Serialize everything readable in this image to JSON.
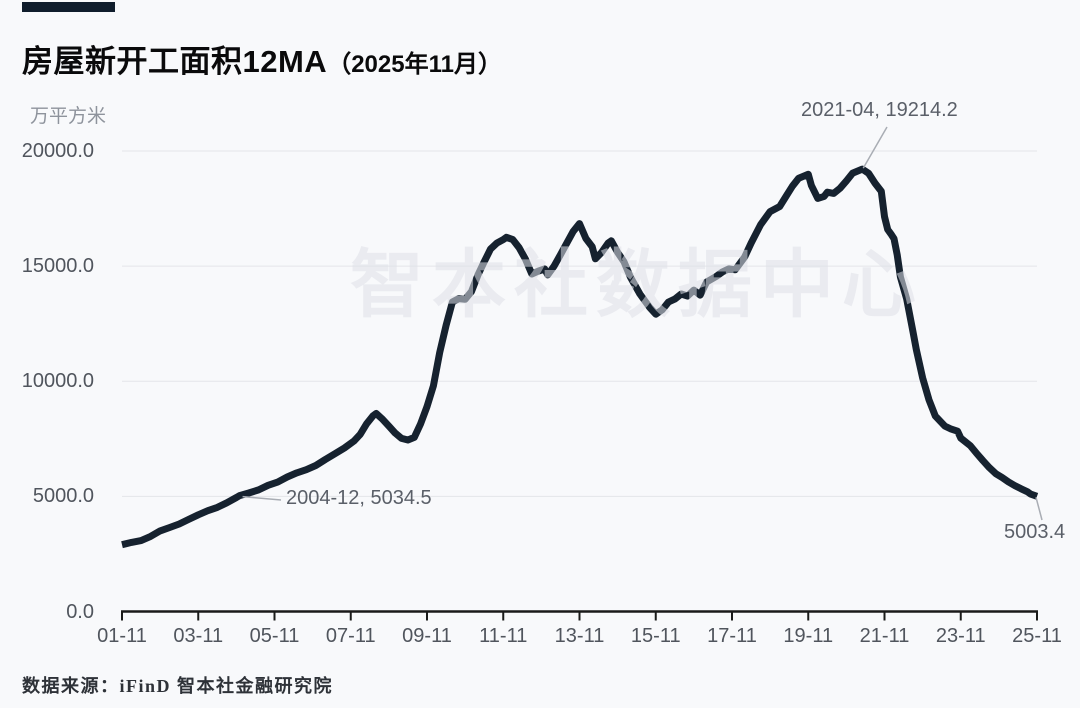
{
  "header": {
    "title_main": "房屋新开工面积12MA",
    "title_paren": "（2025年11月）",
    "unit_label": "万平方米"
  },
  "watermark": "智本社数据中心",
  "footer": {
    "source": "数据来源：iFinD 智本社金融研究院"
  },
  "colors": {
    "background": "#f8f9fb",
    "accent_bar": "#101d2c",
    "line": "#16222f",
    "grid": "#e4e5e9",
    "axis": "#1a1a1a",
    "tick_text": "#50555d",
    "annotation_text": "#5a5f68",
    "leader_line": "#a9adb4",
    "watermark_text": "#e3e5ec"
  },
  "chart_data": {
    "type": "line",
    "title": "房屋新开工面积12MA（2025年11月）",
    "xlabel": "",
    "ylabel": "万平方米",
    "ylim": [
      0,
      20000
    ],
    "grid": "horizontal",
    "legend": "none",
    "y_ticks": [
      "20000.0",
      "15000.0",
      "10000.0",
      "5000.0",
      "0.0"
    ],
    "x_ticks": [
      "01-11",
      "03-11",
      "05-11",
      "07-11",
      "09-11",
      "11-11",
      "13-11",
      "15-11",
      "17-11",
      "19-11",
      "21-11",
      "23-11",
      "25-11"
    ],
    "annotations": [
      {
        "label": "2004-12, 5034.5",
        "date": "2004-12",
        "value": 5034.5
      },
      {
        "label": "2021-04, 19214.2",
        "date": "2021-04",
        "value": 19214.2
      },
      {
        "label": "5003.4",
        "date": "2025-11",
        "value": 5003.4
      }
    ],
    "series": [
      {
        "name": "房屋新开工面积12MA",
        "color": "#16222f",
        "points": [
          [
            "2001-11",
            2900
          ],
          [
            "2002-02",
            3000
          ],
          [
            "2002-05",
            3080
          ],
          [
            "2002-08",
            3260
          ],
          [
            "2002-11",
            3500
          ],
          [
            "2003-02",
            3650
          ],
          [
            "2003-05",
            3800
          ],
          [
            "2003-08",
            4000
          ],
          [
            "2003-11",
            4200
          ],
          [
            "2004-02",
            4380
          ],
          [
            "2004-05",
            4520
          ],
          [
            "2004-08",
            4720
          ],
          [
            "2004-11",
            4950
          ],
          [
            "2004-12",
            5034.5
          ],
          [
            "2005-03",
            5150
          ],
          [
            "2005-06",
            5280
          ],
          [
            "2005-09",
            5480
          ],
          [
            "2005-12",
            5620
          ],
          [
            "2006-03",
            5840
          ],
          [
            "2006-06",
            6020
          ],
          [
            "2006-09",
            6160
          ],
          [
            "2006-12",
            6340
          ],
          [
            "2007-03",
            6600
          ],
          [
            "2007-06",
            6850
          ],
          [
            "2007-09",
            7100
          ],
          [
            "2007-12",
            7400
          ],
          [
            "2008-02",
            7700
          ],
          [
            "2008-04",
            8150
          ],
          [
            "2008-06",
            8500
          ],
          [
            "2008-07",
            8600
          ],
          [
            "2008-09",
            8350
          ],
          [
            "2008-11",
            8050
          ],
          [
            "2009-01",
            7750
          ],
          [
            "2009-03",
            7520
          ],
          [
            "2009-05",
            7450
          ],
          [
            "2009-07",
            7560
          ],
          [
            "2009-09",
            8150
          ],
          [
            "2009-11",
            8900
          ],
          [
            "2010-01",
            9800
          ],
          [
            "2010-03",
            11250
          ],
          [
            "2010-05",
            12430
          ],
          [
            "2010-07",
            13440
          ],
          [
            "2010-09",
            13590
          ],
          [
            "2010-11",
            13560
          ],
          [
            "2011-01",
            13900
          ],
          [
            "2011-03",
            14600
          ],
          [
            "2011-05",
            15190
          ],
          [
            "2011-07",
            15740
          ],
          [
            "2011-09",
            16000
          ],
          [
            "2011-11",
            16150
          ],
          [
            "2011-12",
            16250
          ],
          [
            "2012-02",
            16150
          ],
          [
            "2012-04",
            15800
          ],
          [
            "2012-06",
            15300
          ],
          [
            "2012-08",
            14660
          ],
          [
            "2012-10",
            14780
          ],
          [
            "2012-12",
            14880
          ],
          [
            "2013-01",
            14620
          ],
          [
            "2013-03",
            15000
          ],
          [
            "2013-05",
            15490
          ],
          [
            "2013-07",
            16000
          ],
          [
            "2013-09",
            16500
          ],
          [
            "2013-11",
            16848
          ],
          [
            "2014-01",
            16200
          ],
          [
            "2014-03",
            15840
          ],
          [
            "2014-04",
            15320
          ],
          [
            "2014-06",
            15600
          ],
          [
            "2014-08",
            16000
          ],
          [
            "2014-09",
            16100
          ],
          [
            "2014-11",
            15600
          ],
          [
            "2015-01",
            15190
          ],
          [
            "2015-03",
            14530
          ],
          [
            "2015-06",
            13790
          ],
          [
            "2015-09",
            13220
          ],
          [
            "2015-11",
            12910
          ],
          [
            "2016-01",
            13100
          ],
          [
            "2016-03",
            13440
          ],
          [
            "2016-05",
            13570
          ],
          [
            "2016-07",
            13790
          ],
          [
            "2016-09",
            13700
          ],
          [
            "2016-11",
            13960
          ],
          [
            "2017-01",
            13740
          ],
          [
            "2017-03",
            14310
          ],
          [
            "2017-06",
            14550
          ],
          [
            "2017-08",
            14750
          ],
          [
            "2017-10",
            14880
          ],
          [
            "2017-12",
            14840
          ],
          [
            "2018-03",
            15400
          ],
          [
            "2018-05",
            16000
          ],
          [
            "2018-08",
            16800
          ],
          [
            "2018-11",
            17370
          ],
          [
            "2019-02",
            17590
          ],
          [
            "2019-04",
            18030
          ],
          [
            "2019-06",
            18470
          ],
          [
            "2019-08",
            18820
          ],
          [
            "2019-11",
            18990
          ],
          [
            "2019-12",
            18500
          ],
          [
            "2020-02",
            17940
          ],
          [
            "2020-04",
            18030
          ],
          [
            "2020-05",
            18210
          ],
          [
            "2020-07",
            18160
          ],
          [
            "2020-09",
            18380
          ],
          [
            "2020-11",
            18700
          ],
          [
            "2021-01",
            19040
          ],
          [
            "2021-04",
            19214.2
          ],
          [
            "2021-06",
            19030
          ],
          [
            "2021-08",
            18600
          ],
          [
            "2021-10",
            18250
          ],
          [
            "2021-11",
            17150
          ],
          [
            "2021-12",
            16590
          ],
          [
            "2022-01",
            16400
          ],
          [
            "2022-02",
            16190
          ],
          [
            "2022-03",
            15490
          ],
          [
            "2022-04",
            14530
          ],
          [
            "2022-06",
            13570
          ],
          [
            "2022-08",
            12120
          ],
          [
            "2022-09",
            11380
          ],
          [
            "2022-11",
            10150
          ],
          [
            "2023-01",
            9190
          ],
          [
            "2023-03",
            8490
          ],
          [
            "2023-06",
            8050
          ],
          [
            "2023-08",
            7920
          ],
          [
            "2023-10",
            7830
          ],
          [
            "2023-11",
            7530
          ],
          [
            "2024-02",
            7200
          ],
          [
            "2024-04",
            6870
          ],
          [
            "2024-06",
            6550
          ],
          [
            "2024-08",
            6250
          ],
          [
            "2024-10",
            5990
          ],
          [
            "2024-12",
            5820
          ],
          [
            "2025-02",
            5630
          ],
          [
            "2025-04",
            5470
          ],
          [
            "2025-06",
            5330
          ],
          [
            "2025-08",
            5200
          ],
          [
            "2025-09",
            5100
          ],
          [
            "2025-11",
            5003.4
          ]
        ]
      }
    ]
  }
}
